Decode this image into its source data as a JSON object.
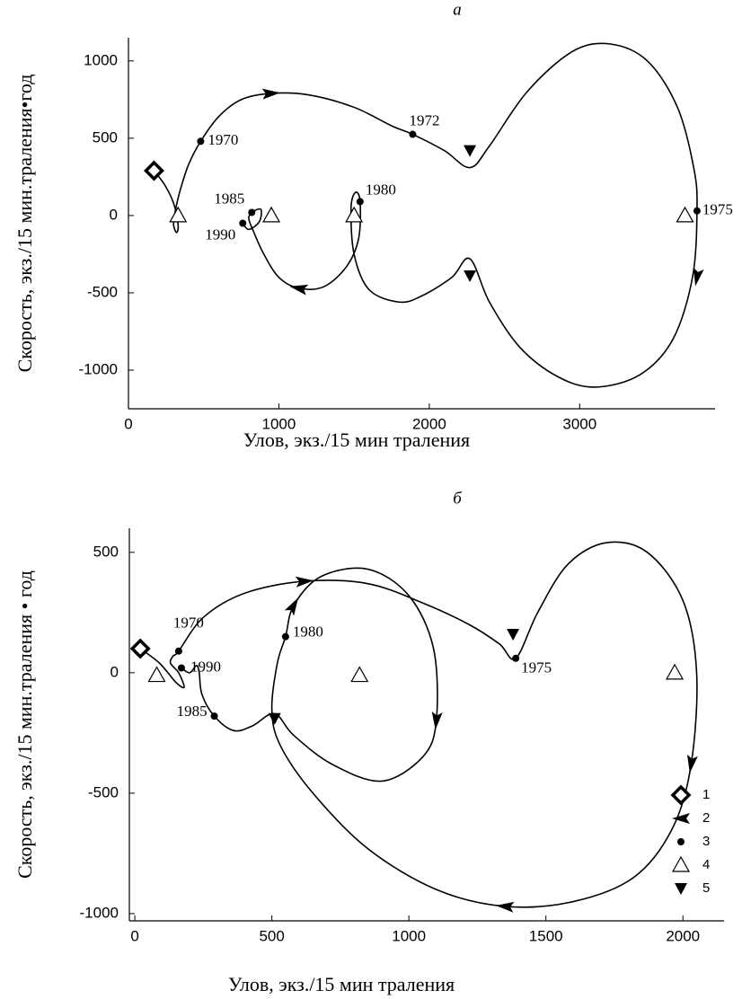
{
  "chart_data": [
    {
      "type": "line",
      "title": "а",
      "x_label": "Улов, экз./15 мин траления",
      "y_label": "Скорость, экз./15 мин.траления•год",
      "xlim": [
        0,
        3900
      ],
      "ylim": [
        -1250,
        1150
      ],
      "xticks": [
        0,
        1000,
        2000,
        3000
      ],
      "yticks": [
        -1000,
        -500,
        0,
        500,
        1000
      ],
      "legend": false,
      "series": [
        {
          "marker": "line",
          "color": "#000000",
          "x": [
            170,
            240,
            300,
            330,
            320,
            300,
            310,
            340,
            400,
            480,
            600,
            750,
            950,
            1200,
            1500,
            1750,
            1890,
            2100,
            2270,
            2400,
            2650,
            2950,
            3200,
            3450,
            3650,
            3760,
            3780,
            3750,
            3620,
            3400,
            3100,
            2850,
            2600,
            2400,
            2270,
            2150,
            1950,
            1800,
            1600,
            1500,
            1480,
            1510,
            1540,
            1530,
            1450,
            1300,
            1130,
            1000,
            900,
            830,
            800,
            820,
            880,
            870,
            800,
            760
          ],
          "values": [
            290,
            200,
            80,
            -60,
            -110,
            -60,
            20,
            150,
            330,
            480,
            640,
            750,
            790,
            780,
            700,
            580,
            525,
            420,
            310,
            450,
            800,
            1060,
            1110,
            1000,
            700,
            300,
            30,
            -400,
            -800,
            -1030,
            -1110,
            -1040,
            -850,
            -560,
            -280,
            -400,
            -520,
            -560,
            -480,
            -250,
            50,
            150,
            90,
            -150,
            -330,
            -460,
            -470,
            -400,
            -250,
            -100,
            -20,
            20,
            40,
            -40,
            -90,
            -50
          ]
        },
        {
          "marker": "diamond",
          "x": [
            170
          ],
          "values": [
            290
          ]
        },
        {
          "marker": "arrow",
          "x": [
            950,
            3780,
            1130
          ],
          "values": [
            790,
            -400,
            -470
          ]
        },
        {
          "marker": "dot",
          "x": [
            480,
            1890,
            3780,
            1540,
            820,
            760
          ],
          "values": [
            480,
            525,
            30,
            90,
            20,
            -50
          ],
          "point_labels": [
            "1970",
            "1972",
            "1975",
            "1980",
            "1985",
            "1990"
          ]
        },
        {
          "marker": "open-triangle",
          "x": [
            330,
            950,
            1500,
            3700
          ],
          "values": [
            0,
            0,
            0,
            0
          ]
        },
        {
          "marker": "down-triangle",
          "x": [
            2270,
            2270
          ],
          "values": [
            420,
            -390
          ]
        }
      ]
    },
    {
      "type": "line",
      "title": "б",
      "x_label": "Улов, экз./15 мин траления",
      "y_label": "Скорость, экз./15 мин.траления • год",
      "xlim": [
        -20,
        2150
      ],
      "ylim": [
        -1030,
        600
      ],
      "xticks": [
        0,
        500,
        1000,
        1500,
        2000
      ],
      "yticks": [
        -1000,
        -500,
        0,
        500
      ],
      "legend": "lower right",
      "series": [
        {
          "marker": "line",
          "color": "#000000",
          "x": [
            20,
            90,
            150,
            180,
            160,
            130,
            140,
            160,
            250,
            400,
            620,
            850,
            1050,
            1220,
            1330,
            1390,
            1470,
            1580,
            1720,
            1870,
            2000,
            2050,
            2030,
            1960,
            1820,
            1600,
            1350,
            1100,
            850,
            650,
            530,
            500,
            520,
            550,
            580,
            680,
            850,
            1000,
            1090,
            1100,
            1050,
            900,
            720,
            580,
            510,
            430,
            360,
            290,
            245,
            235,
            225,
            200,
            170
          ],
          "values": [
            100,
            40,
            -40,
            -60,
            0,
            40,
            70,
            90,
            230,
            330,
            380,
            370,
            290,
            200,
            120,
            60,
            250,
            450,
            540,
            500,
            300,
            0,
            -380,
            -650,
            -850,
            -950,
            -970,
            -900,
            -730,
            -500,
            -300,
            -150,
            40,
            150,
            280,
            400,
            430,
            320,
            100,
            -200,
            -350,
            -450,
            -380,
            -260,
            -170,
            -220,
            -240,
            -180,
            -90,
            0,
            30,
            0,
            20
          ]
        },
        {
          "name": "1",
          "marker": "diamond",
          "x": [
            20
          ],
          "values": [
            100
          ]
        },
        {
          "name": "2",
          "marker": "arrow",
          "x": [
            620,
            580,
            1100,
            2030,
            1350
          ],
          "values": [
            380,
            280,
            -200,
            -380,
            -970
          ]
        },
        {
          "name": "3",
          "marker": "dot",
          "x": [
            160,
            1390,
            550,
            290,
            170
          ],
          "values": [
            90,
            60,
            150,
            -180,
            20
          ],
          "point_labels": [
            "1970",
            "1975",
            "1980",
            "1985",
            "1990"
          ]
        },
        {
          "name": "4",
          "marker": "open-triangle",
          "x": [
            80,
            820,
            1970
          ],
          "values": [
            -10,
            -10,
            0
          ]
        },
        {
          "name": "5",
          "marker": "down-triangle",
          "x": [
            1380,
            510
          ],
          "values": [
            160,
            -190
          ]
        }
      ]
    }
  ]
}
